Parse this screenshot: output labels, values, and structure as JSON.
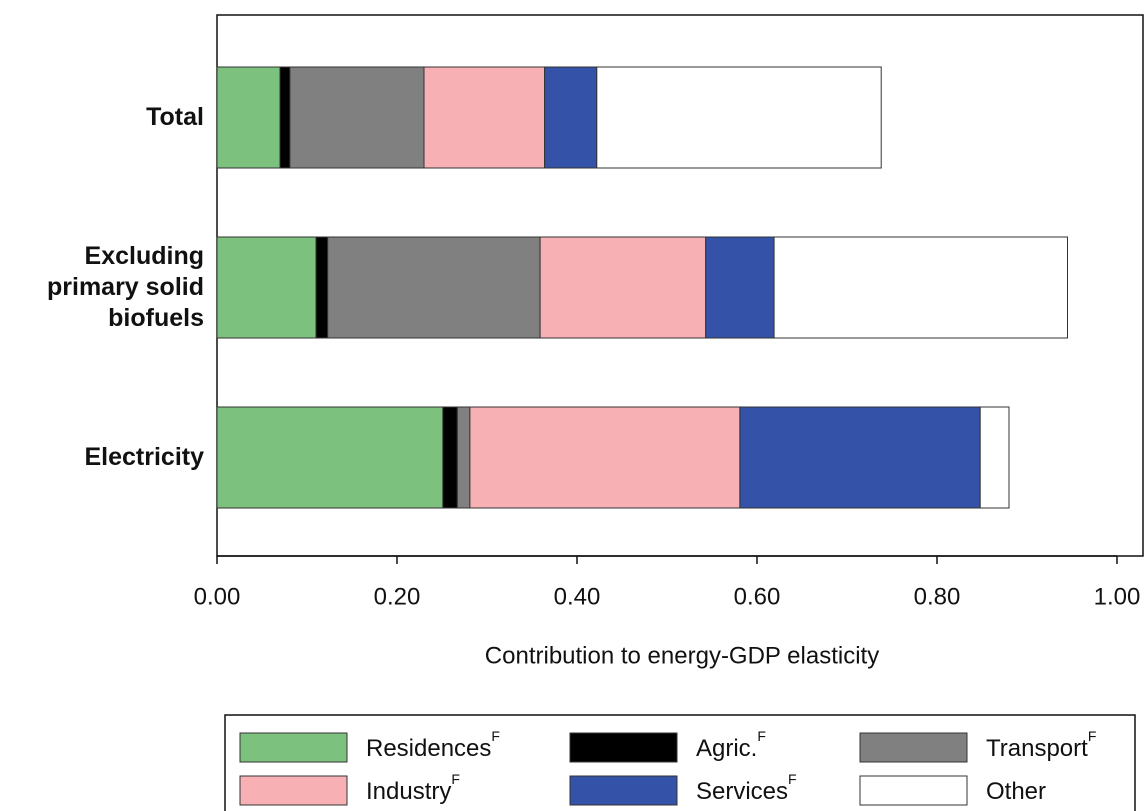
{
  "chart_data": {
    "type": "stacked-bar-horizontal",
    "x_label": "Contribution to energy-GDP elasticity",
    "categories": [
      "Total",
      "Excluding primary solid biofuels",
      "Electricity"
    ],
    "xlim": [
      0,
      1.0
    ],
    "xticks": [
      {
        "value": 0,
        "label": "0.00"
      },
      {
        "value": 0.2,
        "label": "0.20"
      },
      {
        "value": 0.4,
        "label": "0.40"
      },
      {
        "value": 0.6,
        "label": "0.60"
      },
      {
        "value": 0.8,
        "label": "0.80"
      },
      {
        "value": 1.0,
        "label": "1.00"
      }
    ],
    "series": [
      {
        "name": "Residences",
        "superscript": "F",
        "color": "#7dc17f",
        "values": [
          0.07,
          0.11,
          0.251
        ]
      },
      {
        "name": "Agric.",
        "superscript": "F",
        "color": "#000000",
        "values": [
          0.011,
          0.013,
          0.016
        ]
      },
      {
        "name": "Transport",
        "superscript": "F",
        "color": "#808080",
        "values": [
          0.149,
          0.236,
          0.014
        ]
      },
      {
        "name": "Industry",
        "superscript": "F",
        "color": "#f7b0b3",
        "values": [
          0.134,
          0.184,
          0.3
        ]
      },
      {
        "name": "Services",
        "superscript": "F",
        "color": "#3453a8",
        "values": [
          0.058,
          0.076,
          0.267
        ]
      },
      {
        "name": "Other",
        "color": "#ffffff",
        "values": [
          0.316,
          0.326,
          0.032
        ]
      }
    ],
    "legend": "bottom"
  }
}
